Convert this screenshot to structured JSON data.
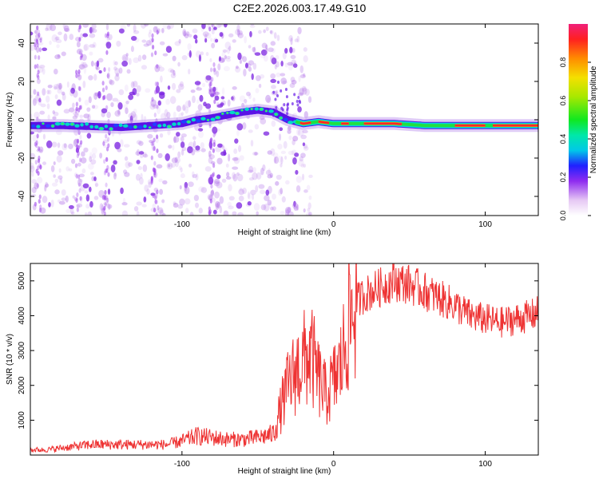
{
  "title": "C2E2.2026.003.17.49.G10",
  "chart_data": [
    {
      "type": "heatmap",
      "xlabel": "Height of straight line (km)",
      "ylabel": "Frequency (Hz)",
      "xlim": [
        -200,
        135
      ],
      "ylim": [
        -50,
        50
      ],
      "xticks": [
        -100,
        0,
        100
      ],
      "xtick_labels": [
        "-100",
        "0",
        "100"
      ],
      "yticks": [
        -40,
        -20,
        0,
        20,
        40
      ],
      "ytick_labels": [
        "-40",
        "-20",
        "0",
        "20",
        "40"
      ],
      "colorbar": {
        "label": "Normalized spectral amplitude",
        "range": [
          0,
          1
        ],
        "ticks": [
          0.0,
          0.2,
          0.4,
          0.6,
          0.8
        ],
        "tick_labels": [
          "0.0",
          "0.2",
          "0.4",
          "0.6",
          "0.8"
        ]
      },
      "ridge": {
        "x": [
          -200,
          -180,
          -160,
          -140,
          -120,
          -100,
          -90,
          -80,
          -70,
          -60,
          -50,
          -40,
          -30,
          -25,
          -20,
          -10,
          0,
          10,
          20,
          40,
          60,
          80,
          100,
          120,
          135
        ],
        "freq": [
          -3,
          -3,
          -3.5,
          -4,
          -3,
          -2,
          0,
          1,
          2.5,
          4,
          5,
          4,
          0,
          -1,
          -2,
          -1,
          -2,
          -2,
          -2,
          -2,
          -3,
          -3,
          -3,
          -3,
          -3
        ]
      }
    },
    {
      "type": "line",
      "xlabel": "Height of straight line (km)",
      "ylabel": "SNR (10 * v/v)",
      "xlim": [
        -200,
        135
      ],
      "ylim": [
        0,
        5500
      ],
      "xticks": [
        -100,
        0,
        100
      ],
      "xtick_labels": [
        "-100",
        "0",
        "100"
      ],
      "yticks": [
        1000,
        2000,
        3000,
        4000,
        5000
      ],
      "ytick_labels": [
        "1000",
        "2000",
        "3000",
        "4000",
        "5000"
      ],
      "series": [
        {
          "name": "SNR",
          "color": "#ee3333",
          "x": [
            -200,
            -190,
            -180,
            -170,
            -160,
            -150,
            -140,
            -130,
            -120,
            -110,
            -100,
            -90,
            -80,
            -70,
            -60,
            -50,
            -40,
            -35,
            -30,
            -25,
            -20,
            -15,
            -10,
            -5,
            0,
            5,
            10,
            15,
            20,
            30,
            40,
            50,
            60,
            70,
            80,
            90,
            100,
            110,
            120,
            130,
            135
          ],
          "y": [
            150,
            150,
            200,
            250,
            300,
            300,
            300,
            300,
            300,
            300,
            400,
            550,
            500,
            450,
            450,
            500,
            600,
            1300,
            2000,
            2400,
            2700,
            2900,
            2200,
            1700,
            2100,
            2600,
            3800,
            4400,
            4600,
            4800,
            5000,
            4900,
            4700,
            4500,
            4300,
            4000,
            3900,
            3800,
            3900,
            4000,
            4100
          ]
        }
      ]
    }
  ]
}
